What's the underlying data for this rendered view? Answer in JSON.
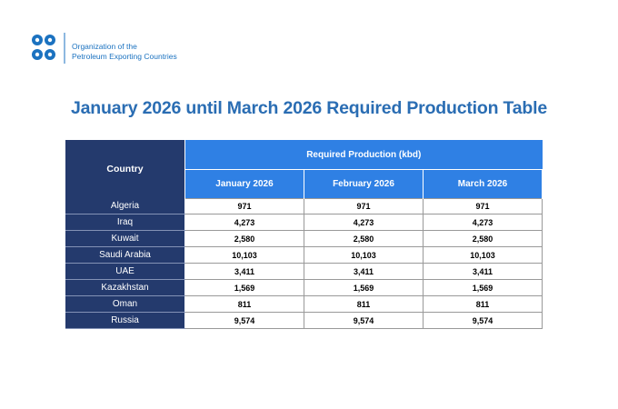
{
  "header": {
    "org_name": [
      "Organization of the",
      "Petroleum Exporting Countries"
    ]
  },
  "title": "January 2026 until March 2026 Required Production Table",
  "table": {
    "country_header": "Country",
    "group_header": "Required Production (kbd)",
    "columns": [
      "January 2026",
      "February 2026",
      "March 2026"
    ],
    "rows": [
      [
        "Algeria",
        "971",
        "971",
        "971"
      ],
      [
        "Iraq",
        "4,273",
        "4,273",
        "4,273"
      ],
      [
        "Kuwait",
        "2,580",
        "2,580",
        "2,580"
      ],
      [
        "Saudi Arabia",
        "10,103",
        "10,103",
        "10,103"
      ],
      [
        "UAE",
        "3,411",
        "3,411",
        "3,411"
      ],
      [
        "Kazakhstan",
        "1,569",
        "1,569",
        "1,569"
      ],
      [
        "Oman",
        "811",
        "811",
        "811"
      ],
      [
        "Russia",
        "9,574",
        "9,574",
        "9,574"
      ]
    ]
  }
}
